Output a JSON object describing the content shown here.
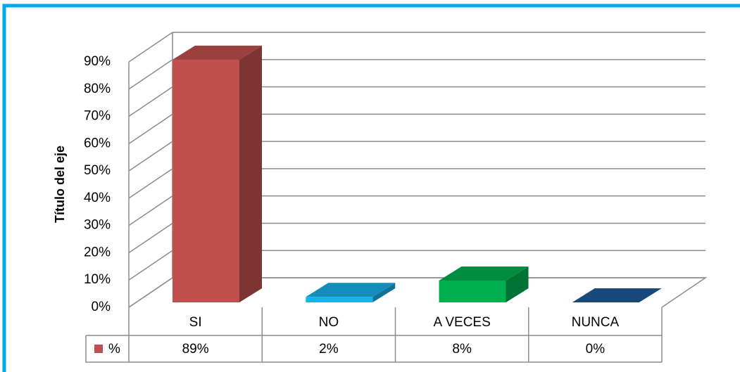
{
  "chart_data": {
    "type": "bar3d",
    "y_axis_label": "Título del eje",
    "categories": [
      "SI",
      "NO",
      "A VECES",
      "NUNCA"
    ],
    "series": [
      {
        "name": "%",
        "color": "#c0504d",
        "colors": [
          "#c0504d",
          "#1ab0e8",
          "#00b050",
          "#1f5a9a"
        ],
        "values": [
          89,
          2,
          8,
          0
        ],
        "value_labels": [
          "89%",
          "2%",
          "8%",
          "0%"
        ]
      }
    ],
    "ylim": [
      0,
      90
    ],
    "yticks": [
      {
        "value": 0,
        "label": "0%"
      },
      {
        "value": 10,
        "label": "10%"
      },
      {
        "value": 20,
        "label": "20%"
      },
      {
        "value": 30,
        "label": "30%"
      },
      {
        "value": 40,
        "label": "40%"
      },
      {
        "value": 50,
        "label": "50%"
      },
      {
        "value": 60,
        "label": "60%"
      },
      {
        "value": 70,
        "label": "70%"
      },
      {
        "value": 80,
        "label": "80%"
      },
      {
        "value": 90,
        "label": "90%"
      }
    ],
    "grid": true
  }
}
